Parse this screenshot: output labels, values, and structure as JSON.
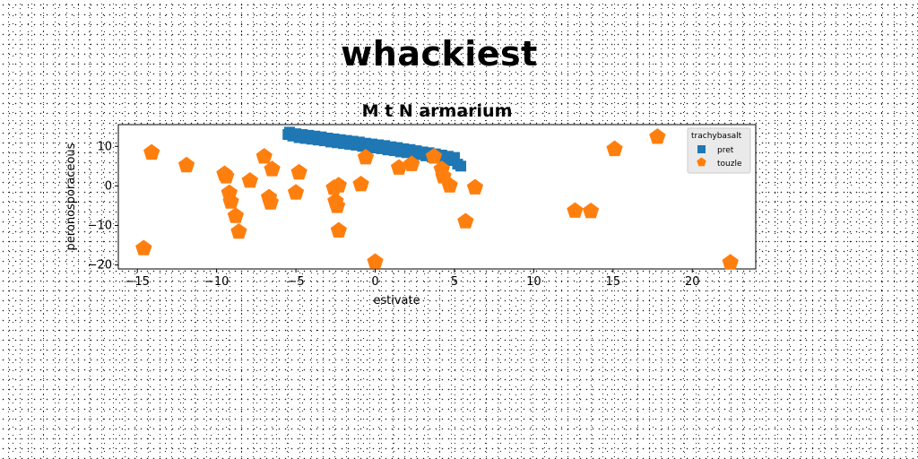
{
  "page": {
    "supertitle": "whackiest"
  },
  "chart_data": {
    "type": "scatter",
    "title": "M t N armarium",
    "xlabel": "estivate",
    "ylabel": "peronosporaceous",
    "xlim": [
      -16.2,
      24.0
    ],
    "ylim": [
      -21.0,
      15.5
    ],
    "xticks": [
      -15,
      -10,
      -5,
      0,
      5,
      10,
      15,
      20
    ],
    "yticks": [
      -20,
      -10,
      0,
      10
    ],
    "grid": false,
    "legend": {
      "title": "trachybasalt",
      "placement": "upper right",
      "entries": [
        "pret",
        "touzle"
      ]
    },
    "series": [
      {
        "name": "pret",
        "marker": "square",
        "color": "#1f77b4",
        "x": [
          -5.5,
          -5.4,
          -5.2,
          -5.0,
          -4.8,
          -4.6,
          -4.4,
          -4.2,
          -4.0,
          -3.8,
          -3.6,
          -3.4,
          -3.2,
          -3.0,
          -2.8,
          -2.6,
          -2.4,
          -2.2,
          -2.0,
          -1.8,
          -1.6,
          -1.4,
          -1.2,
          -1.0,
          -0.8,
          -0.6,
          -0.4,
          -0.2,
          0.0,
          0.2,
          0.4,
          0.6,
          0.8,
          1.0,
          1.2,
          1.4,
          1.6,
          1.8,
          2.0,
          2.2,
          2.4,
          2.6,
          2.8,
          3.0,
          3.2,
          3.4,
          3.6,
          3.8,
          4.0,
          4.2,
          4.4,
          4.6,
          4.8,
          5.0,
          5.2,
          5.4
        ],
        "y": [
          13.0,
          13.6,
          12.6,
          13.2,
          12.2,
          13.0,
          12.0,
          12.8,
          11.8,
          12.6,
          11.6,
          12.4,
          11.4,
          12.1,
          11.1,
          11.9,
          10.9,
          11.7,
          10.7,
          11.5,
          10.5,
          11.3,
          10.3,
          11.1,
          10.0,
          10.8,
          9.8,
          10.6,
          9.6,
          10.4,
          9.4,
          10.2,
          9.1,
          9.9,
          8.9,
          9.7,
          8.6,
          9.4,
          8.4,
          9.2,
          8.1,
          8.9,
          7.9,
          8.6,
          7.6,
          8.4,
          7.3,
          8.1,
          7.0,
          7.8,
          6.7,
          7.5,
          6.4,
          7.2,
          5.5,
          5.0
        ]
      },
      {
        "name": "touzle",
        "marker": "pentagon",
        "color": "#ff7f0e",
        "x": [
          -14.6,
          -14.1,
          -11.9,
          -9.5,
          -9.4,
          -9.2,
          -9.1,
          -8.8,
          -8.6,
          -7.9,
          -7.0,
          -6.7,
          -6.6,
          -6.5,
          -5.0,
          -4.8,
          -2.6,
          -2.5,
          -2.4,
          -2.3,
          -2.3,
          -0.9,
          -0.6,
          0.0,
          1.5,
          2.3,
          3.7,
          4.2,
          4.3,
          4.7,
          5.7,
          6.3,
          12.6,
          13.6,
          15.1,
          17.8,
          22.4
        ],
        "y": [
          -15.8,
          8.4,
          5.2,
          3.0,
          2.4,
          -1.8,
          -4.0,
          -7.6,
          -11.6,
          1.3,
          7.4,
          -2.9,
          -4.2,
          4.2,
          -1.7,
          3.4,
          -0.5,
          -3.9,
          -5.1,
          -11.3,
          0.1,
          0.4,
          7.2,
          -19.2,
          4.6,
          5.5,
          7.4,
          4.2,
          2.4,
          0.1,
          -9.0,
          -0.4,
          -6.3,
          -6.4,
          9.3,
          12.4,
          -19.4
        ]
      }
    ]
  }
}
